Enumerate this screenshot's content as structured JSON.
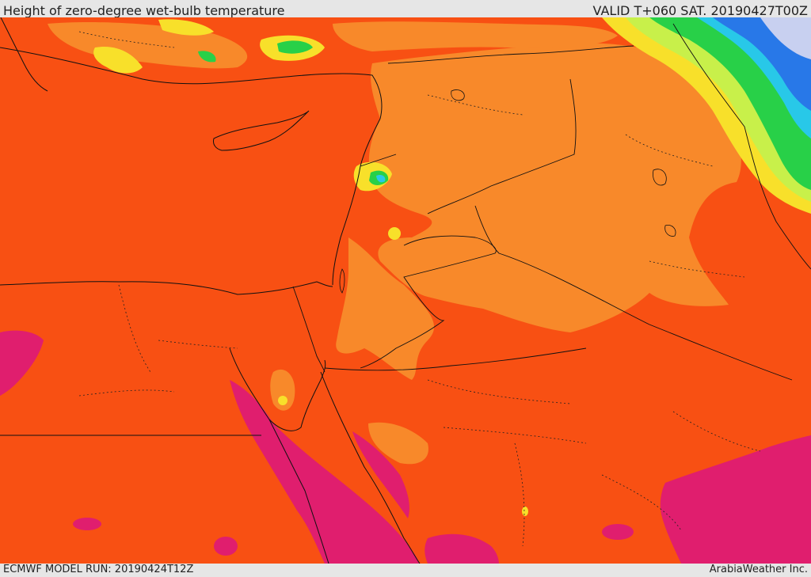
{
  "header": {
    "title": "Height of zero-degree wet-bulb temperature",
    "valid": "VALID T+060 SAT. 20190427T00Z"
  },
  "footer": {
    "model_run": "ECMWF MODEL RUN: 20190424T12Z",
    "credit": "ArabiaWeather Inc."
  },
  "colors": {
    "base_orange": "#f85013",
    "light_orange": "#f8892a",
    "yellow_orange": "#f8b22a",
    "yellow": "#f8e02a",
    "yellow_green": "#c8f04a",
    "green": "#28d048",
    "cyan": "#28c8e8",
    "blue": "#2878e8",
    "lavender": "#c8d0f0",
    "magenta": "#e01e6e",
    "border": "#111111"
  }
}
